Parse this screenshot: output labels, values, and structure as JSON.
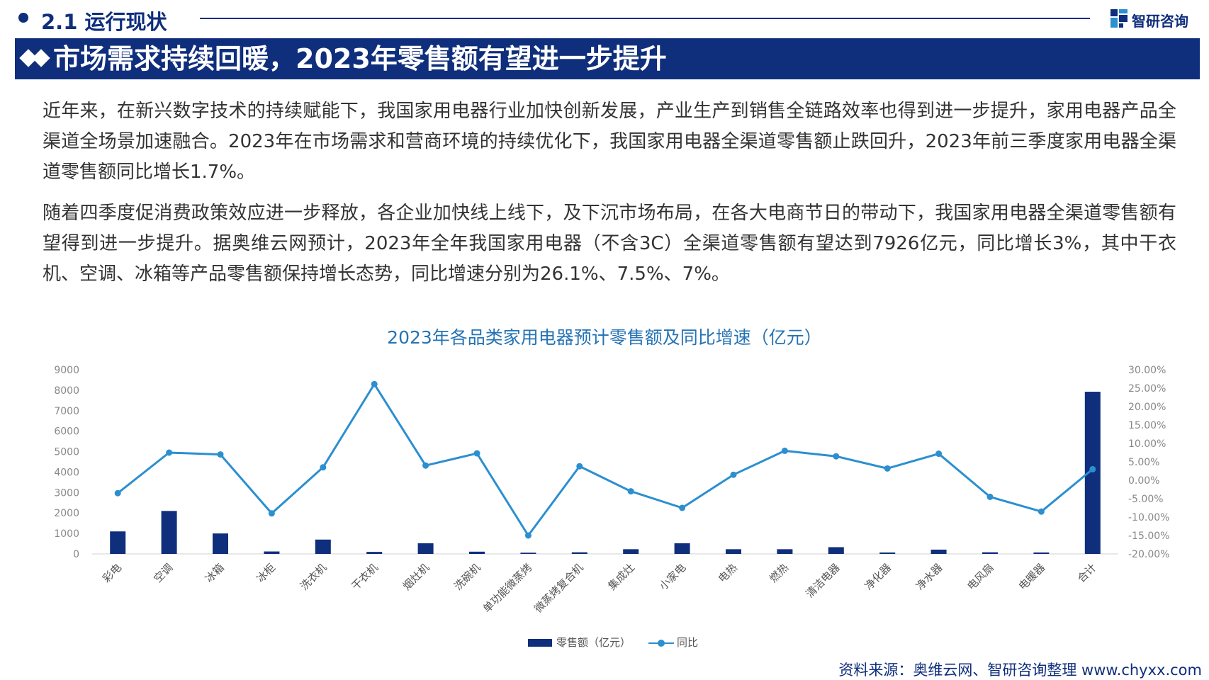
{
  "header": {
    "section": "2.1 运行现状",
    "brand": "智研咨询",
    "banner_title": "市场需求持续回暖，2023年零售额有望进一步提升"
  },
  "body": {
    "paragraph1": "近年来，在新兴数字技术的持续赋能下，我国家用电器行业加快创新发展，产业生产到销售全链路效率也得到进一步提升，家用电器产品全渠道全场景加速融合。2023年在市场需求和营商环境的持续优化下，我国家用电器全渠道零售额止跌回升，2023年前三季度家用电器全渠道零售额同比增长1.7%。",
    "paragraph2": "随着四季度促消费政策效应进一步释放，各企业加快线上线下，及下沉市场布局，在各大电商节日的带动下，我国家用电器全渠道零售额有望得到进一步提升。据奥维云网预计，2023年全年我国家用电器（不含3C）全渠道零售额有望达到7926亿元，同比增长3%，其中干衣机、空调、冰箱等产品零售额保持增长态势，同比增速分别为26.1%、7.5%、7%。"
  },
  "chart_data": {
    "type": "bar",
    "title": "2023年各品类家用电器预计零售额及同比增速（亿元）",
    "categories": [
      "彩电",
      "空调",
      "冰箱",
      "冰柜",
      "洗衣机",
      "干衣机",
      "烟灶机",
      "洗碗机",
      "单功能微蒸烤",
      "微蒸烤复合机",
      "集成灶",
      "小家电",
      "电热",
      "燃热",
      "清洁电器",
      "净化器",
      "净水器",
      "电风扇",
      "电暖器",
      "合计"
    ],
    "series": [
      {
        "name": "零售额（亿元）",
        "type": "bar",
        "axis": "left",
        "values": [
          1100,
          2100,
          1000,
          120,
          700,
          100,
          520,
          110,
          60,
          80,
          230,
          520,
          230,
          230,
          330,
          70,
          210,
          80,
          70,
          7926
        ]
      },
      {
        "name": "同比",
        "type": "line",
        "axis": "right",
        "values": [
          -3.5,
          7.5,
          7.0,
          -9.0,
          3.5,
          26.1,
          4.0,
          7.3,
          -15.0,
          3.8,
          -3.0,
          -7.5,
          1.5,
          8.0,
          6.5,
          3.2,
          7.2,
          -4.5,
          -8.5,
          3.0
        ]
      }
    ],
    "y_left": {
      "min": 0,
      "max": 9000,
      "step": 1000,
      "ticks": [
        "0",
        "1000",
        "2000",
        "3000",
        "4000",
        "5000",
        "6000",
        "7000",
        "8000",
        "9000"
      ]
    },
    "y_right": {
      "min": -20,
      "max": 30,
      "step": 5,
      "ticks": [
        "-20.00%",
        "-15.00%",
        "-10.00%",
        "-5.00%",
        "0.00%",
        "5.00%",
        "10.00%",
        "15.00%",
        "20.00%",
        "25.00%",
        "30.00%"
      ]
    },
    "legend": {
      "position": "bottom",
      "bar_label": "零售额（亿元）",
      "line_label": "同比"
    },
    "grid": false
  },
  "colors": {
    "bar": "#0f2e7c",
    "line": "#2b8fd0",
    "title": "#2573b5",
    "brand": "#0f2e7c"
  },
  "source": "资料来源：奥维云网、智研咨询整理 www.chyxx.com"
}
